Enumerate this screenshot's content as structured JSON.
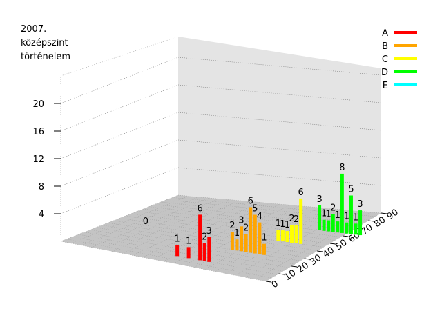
{
  "chart_data": {
    "type": "bar",
    "title_lines": [
      "2007.",
      "középszint",
      "történelem"
    ],
    "zlabel": "",
    "z_ticks": [
      4,
      8,
      12,
      16,
      20
    ],
    "z_range": [
      0,
      24
    ],
    "x_ticks": [
      0,
      10,
      20,
      30,
      40,
      50,
      60,
      70,
      80,
      90
    ],
    "x_range": [
      0,
      90
    ],
    "grades": [
      "A",
      "B",
      "C",
      "D",
      "E"
    ],
    "legend_position": "top-right",
    "colors": {
      "A": "#ff0000",
      "B": "#ffa500",
      "C": "#ffff00",
      "D": "#00ff00",
      "E": "#00ffff"
    },
    "series": [
      {
        "name": "A",
        "points": [
          {
            "x": 46,
            "v": 1
          },
          {
            "x": 51,
            "v": 1
          },
          {
            "x": 56,
            "v": 6
          },
          {
            "x": 58,
            "v": 2
          },
          {
            "x": 60,
            "v": 3
          }
        ]
      },
      {
        "name": "B",
        "points": [
          {
            "x": 60,
            "v": 2
          },
          {
            "x": 62,
            "v": 1
          },
          {
            "x": 64,
            "v": 3
          },
          {
            "x": 66,
            "v": 2
          },
          {
            "x": 68,
            "v": 6
          },
          {
            "x": 70,
            "v": 5
          },
          {
            "x": 72,
            "v": 4
          },
          {
            "x": 74,
            "v": 1
          }
        ]
      },
      {
        "name": "C",
        "points": [
          {
            "x": 70,
            "v": 1
          },
          {
            "x": 72,
            "v": 1
          },
          {
            "x": 74,
            "v": 1
          },
          {
            "x": 76,
            "v": 2
          },
          {
            "x": 78,
            "v": 2
          },
          {
            "x": 80,
            "v": 6
          }
        ]
      },
      {
        "name": "D",
        "points": [
          {
            "x": 78,
            "v": 3
          },
          {
            "x": 80,
            "v": 1
          },
          {
            "x": 82,
            "v": 1
          },
          {
            "x": 84,
            "v": 2
          },
          {
            "x": 86,
            "v": 1
          },
          {
            "x": 88,
            "v": 8
          },
          {
            "x": 90,
            "v": 1
          },
          {
            "x": 92,
            "v": 5
          },
          {
            "x": 94,
            "v": 1
          },
          {
            "x": 96,
            "v": 3
          }
        ]
      },
      {
        "name": "E",
        "points": []
      }
    ],
    "floor_labels": [
      {
        "text": "0",
        "x": 10
      }
    ],
    "grid": true
  }
}
